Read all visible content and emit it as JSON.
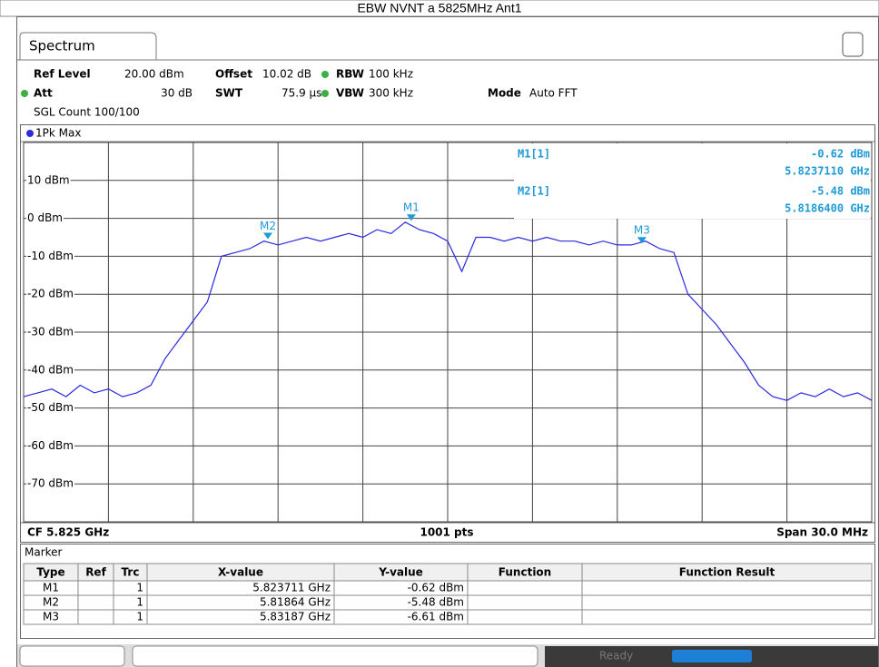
{
  "title": "EBW NVNT a 5825MHz Ant1",
  "tab": "Spectrum",
  "header": {
    "ref_level_label": "Ref Level",
    "ref_level": "20.00 dBm",
    "offset_label": "Offset",
    "offset": "10.02 dB",
    "rbw_label": "RBW",
    "rbw": "100 kHz",
    "att_label": "Att",
    "att": "30 dB",
    "swt_label": "SWT",
    "swt": "75.9 µs",
    "vbw_label": "VBW",
    "vbw": "300 kHz",
    "mode_label": "Mode",
    "mode": "Auto FFT",
    "sgl_count": "SGL Count 100/100"
  },
  "chart_data": {
    "type": "line",
    "xlim": [
      5.81,
      5.84
    ],
    "ylim": [
      -80,
      20
    ],
    "yticks": [
      {
        "value": 10,
        "label": "10 dBm"
      },
      {
        "value": 0,
        "label": "0 dBm"
      },
      {
        "value": -10,
        "label": "-10 dBm"
      },
      {
        "value": -20,
        "label": "-20 dBm"
      },
      {
        "value": -30,
        "label": "-30 dBm"
      },
      {
        "value": -40,
        "label": "-40 dBm"
      },
      {
        "value": -50,
        "label": "-50 dBm"
      },
      {
        "value": -60,
        "label": "-60 dBm"
      },
      {
        "value": -70,
        "label": "-70 dBm"
      }
    ],
    "grid": true,
    "x": [
      5.81,
      5.8105,
      5.811,
      5.8115,
      5.812,
      5.8125,
      5.813,
      5.8135,
      5.814,
      5.8145,
      5.815,
      5.8155,
      5.816,
      5.8165,
      5.817,
      5.8175,
      5.818,
      5.8185,
      5.819,
      5.8195,
      5.82,
      5.8205,
      5.821,
      5.8215,
      5.822,
      5.8225,
      5.823,
      5.8235,
      5.824,
      5.8245,
      5.825,
      5.8255,
      5.826,
      5.8265,
      5.827,
      5.8275,
      5.828,
      5.8285,
      5.829,
      5.8295,
      5.83,
      5.8305,
      5.831,
      5.8315,
      5.832,
      5.8325,
      5.833,
      5.8335,
      5.834,
      5.8345,
      5.835,
      5.8355,
      5.836,
      5.8365,
      5.837,
      5.8375,
      5.838,
      5.8385,
      5.839,
      5.8395,
      5.84
    ],
    "series": [
      {
        "name": "1Pk Max",
        "color": "#2b2be0",
        "values": [
          -47,
          -46,
          -45,
          -47,
          -44,
          -46,
          -45,
          -47,
          -46,
          -44,
          -37,
          -32,
          -27,
          -22,
          -10,
          -9,
          -8,
          -6,
          -7,
          -6,
          -5,
          -6,
          -5,
          -4,
          -5,
          -3,
          -4,
          -1,
          -3,
          -4,
          -6,
          -14,
          -5,
          -5,
          -6,
          -5,
          -6,
          -5,
          -6,
          -6,
          -7,
          -6,
          -7,
          -7,
          -6,
          -8,
          -9,
          -20,
          -24,
          -28,
          -33,
          -38,
          -44,
          -47,
          -48,
          -46,
          -47,
          -45,
          -47,
          -46,
          -48
        ]
      }
    ],
    "markers": [
      {
        "label": "M1",
        "x": 5.823711,
        "y": -0.62
      },
      {
        "label": "M2",
        "x": 5.81864,
        "y": -5.48
      },
      {
        "label": "M3",
        "x": 5.83187,
        "y": -6.61
      }
    ],
    "readout": [
      {
        "name": "M1[1]",
        "value": "-0.62 dBm",
        "freq": "5.8237110 GHz"
      },
      {
        "name": "M2[1]",
        "value": "-5.48 dBm",
        "freq": "5.8186400 GHz"
      }
    ],
    "footer": {
      "left": "CF 5.825 GHz",
      "center": "1001 pts",
      "right": "Span 30.0 MHz"
    }
  },
  "marker_table": {
    "title": "Marker",
    "columns": [
      "Type",
      "Ref",
      "Trc",
      "X-value",
      "Y-value",
      "Function",
      "Function Result"
    ],
    "rows": [
      {
        "type": "M1",
        "trc": "1",
        "x": "5.823711 GHz",
        "y": "-0.62 dBm"
      },
      {
        "type": "M2",
        "trc": "1",
        "x": "5.81864 GHz",
        "y": "-5.48 dBm"
      },
      {
        "type": "M3",
        "trc": "1",
        "x": "5.83187 GHz",
        "y": "-6.61 dBm"
      }
    ]
  },
  "status": "Ready"
}
